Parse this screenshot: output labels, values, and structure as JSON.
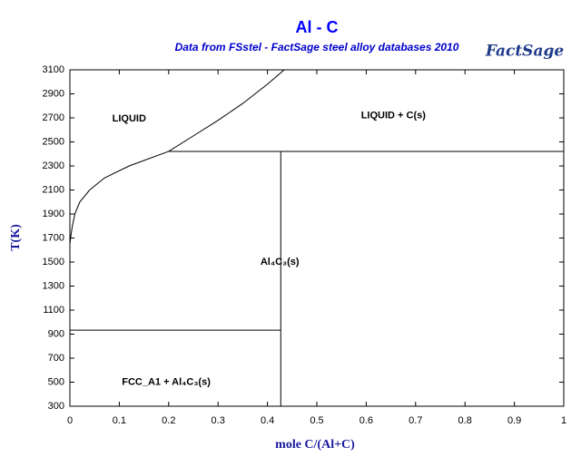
{
  "chart_data": {
    "type": "line",
    "title": "Al - C",
    "subtitle": "Data from FSstel - FactSage steel alloy databases 2010",
    "logo": "FactSage",
    "x_label": "mole C/(Al+C)",
    "y_label": "T(K)",
    "xlim": [
      0,
      1
    ],
    "ylim": [
      300,
      3100
    ],
    "xticks": [
      0,
      0.1,
      0.2,
      0.3,
      0.4,
      0.5,
      0.6,
      0.7,
      0.8,
      0.9,
      1
    ],
    "yticks": [
      300,
      500,
      700,
      900,
      1100,
      1300,
      1500,
      1700,
      1900,
      2100,
      2300,
      2500,
      2700,
      2900,
      3100
    ],
    "color": "#000000",
    "lines": [
      {
        "x": [
          0,
          0.002,
          0.005,
          0.01,
          0.02,
          0.04,
          0.07,
          0.12,
          0.2,
          0.25,
          0.3,
          0.35,
          0.4,
          0.434
        ],
        "values": [
          1650,
          1720,
          1800,
          1900,
          2000,
          2100,
          2200,
          2300,
          2421,
          2550,
          2680,
          2820,
          2980,
          3100
        ]
      },
      {
        "x": [
          0.2,
          1
        ],
        "values": [
          2421,
          2421
        ]
      },
      {
        "x": [
          0.427,
          0.427
        ],
        "values": [
          300,
          2421
        ]
      },
      {
        "x": [
          0,
          0.427
        ],
        "values": [
          933,
          933
        ]
      }
    ],
    "annotations": [
      "LIQUID",
      "LIQUID + C(s)",
      "Al₄C₃(s)",
      "FCC_A1 + Al₄C₃(s)"
    ]
  }
}
